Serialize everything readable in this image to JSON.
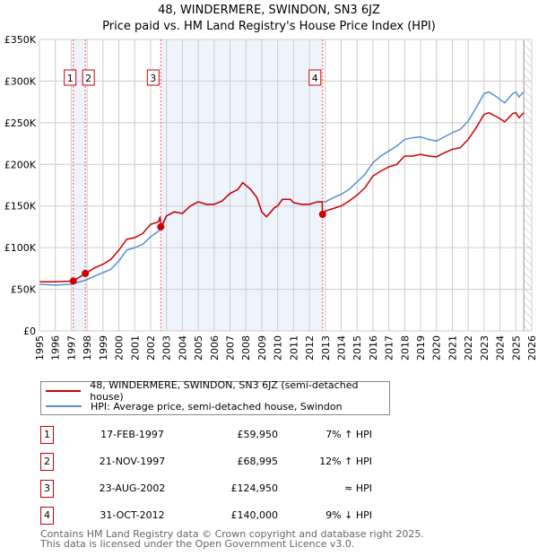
{
  "chart_data": {
    "type": "line",
    "title": "48, WINDERMERE, SWINDON, SN3 6JZ",
    "subtitle": "Price paid vs. HM Land Registry's House Price Index (HPI)",
    "ylim": [
      0,
      350000
    ],
    "xlim": [
      1995,
      2026
    ],
    "yticks": [
      {
        "v": 0,
        "label": "£0"
      },
      {
        "v": 50000,
        "label": "£50K"
      },
      {
        "v": 100000,
        "label": "£100K"
      },
      {
        "v": 150000,
        "label": "£150K"
      },
      {
        "v": 200000,
        "label": "£200K"
      },
      {
        "v": 250000,
        "label": "£250K"
      },
      {
        "v": 300000,
        "label": "£300K"
      },
      {
        "v": 350000,
        "label": "£350K"
      }
    ],
    "xticks": [
      "1995",
      "1996",
      "1997",
      "1998",
      "1999",
      "2000",
      "2001",
      "2002",
      "2003",
      "2004",
      "2005",
      "2006",
      "2007",
      "2008",
      "2009",
      "2010",
      "2011",
      "2012",
      "2013",
      "2014",
      "2015",
      "2016",
      "2017",
      "2018",
      "2019",
      "2020",
      "2021",
      "2022",
      "2023",
      "2024",
      "2025",
      "2026"
    ],
    "series": [
      {
        "name": "48, WINDERMERE, SWINDON, SN3 6JZ (semi-detached house)",
        "color": "#cc0000",
        "x": [
          1995,
          1996,
          1997.13,
          1997.9,
          1998.5,
          1999,
          1999.5,
          2000,
          2000.5,
          2001,
          2001.5,
          2002,
          2002.5,
          2002.6,
          2002.65,
          2003,
          2003.5,
          2004,
          2004.5,
          2005,
          2005.5,
          2006,
          2006.5,
          2007,
          2007.5,
          2007.8,
          2008.3,
          2008.7,
          2009,
          2009.3,
          2009.8,
          2010,
          2010.3,
          2010.8,
          2011,
          2011.5,
          2012,
          2012.5,
          2012.8,
          2012.83,
          2013,
          2013.5,
          2014,
          2014.5,
          2015,
          2015.5,
          2016,
          2016.5,
          2017,
          2017.5,
          2018,
          2018.5,
          2019,
          2019.5,
          2020,
          2020.5,
          2021,
          2021.5,
          2022,
          2022.5,
          2023,
          2023.3,
          2023.8,
          2024,
          2024.3,
          2024.8,
          2025,
          2025.2,
          2025.5
        ],
        "y": [
          59000,
          59000,
          59950,
          68995,
          76000,
          80000,
          86000,
          97000,
          110000,
          112000,
          117000,
          128000,
          131000,
          137000,
          124950,
          138000,
          143000,
          141000,
          150000,
          155000,
          152000,
          152000,
          156000,
          165000,
          170000,
          178000,
          170000,
          160000,
          143000,
          137000,
          148000,
          150000,
          158000,
          158000,
          154000,
          152000,
          152000,
          155000,
          155000,
          140000,
          144000,
          147000,
          150000,
          156000,
          163000,
          172000,
          186000,
          192000,
          197000,
          200000,
          210000,
          210000,
          212000,
          210000,
          209000,
          214000,
          218000,
          220000,
          230000,
          244000,
          260000,
          262000,
          257000,
          255000,
          251000,
          261000,
          262000,
          256000,
          262000
        ]
      },
      {
        "name": "HPI: Average price, semi-detached house, Swindon",
        "color": "#5b8fd0",
        "x": [
          1995,
          1996,
          1997,
          1997.9,
          1998.5,
          1999,
          1999.5,
          2000,
          2000.5,
          2001,
          2001.5,
          2002,
          2002.65,
          2003,
          2003.5,
          2004,
          2004.5,
          2005,
          2005.5,
          2006,
          2006.5,
          2007,
          2007.5,
          2007.8,
          2008.3,
          2008.7,
          2009,
          2009.3,
          2009.8,
          2010,
          2010.3,
          2010.8,
          2011,
          2011.5,
          2012,
          2012.5,
          2013,
          2013.5,
          2014,
          2014.5,
          2015,
          2015.5,
          2016,
          2016.5,
          2017,
          2017.5,
          2018,
          2018.5,
          2019,
          2019.5,
          2020,
          2020.5,
          2021,
          2021.5,
          2022,
          2022.5,
          2023,
          2023.3,
          2023.8,
          2024,
          2024.3,
          2024.8,
          2025,
          2025.2,
          2025.5
        ],
        "y": [
          56000,
          55000,
          56000,
          61000,
          66000,
          70000,
          74000,
          84000,
          97000,
          100000,
          104000,
          113000,
          122000,
          138000,
          143000,
          141000,
          150000,
          155000,
          152000,
          152000,
          156000,
          165000,
          170000,
          178000,
          170000,
          160000,
          143000,
          137000,
          148000,
          150000,
          158000,
          158000,
          154000,
          152000,
          152000,
          155000,
          155000,
          160000,
          164000,
          170000,
          179000,
          188000,
          202000,
          210000,
          216000,
          222000,
          230000,
          232000,
          233000,
          230000,
          228000,
          233000,
          238000,
          242000,
          252000,
          268000,
          285000,
          287000,
          281000,
          278000,
          274000,
          285000,
          287000,
          281000,
          287000
        ]
      }
    ],
    "sales": [
      {
        "id": "1",
        "x": 1997.13,
        "y": 59950
      },
      {
        "id": "2",
        "x": 1997.89,
        "y": 68995
      },
      {
        "id": "3",
        "x": 2002.64,
        "y": 124950
      },
      {
        "id": "4",
        "x": 2012.83,
        "y": 140000
      }
    ],
    "shaded_ranges": [
      [
        1997.13,
        1997.89
      ],
      [
        2002.64,
        2012.83
      ]
    ],
    "forecast_hatch_from": 2025.5,
    "grid": true,
    "legend": "bottom"
  },
  "table": [
    {
      "id": "1",
      "date": "17-FEB-1997",
      "price": "£59,950",
      "hpi": "7% ↑ HPI"
    },
    {
      "id": "2",
      "date": "21-NOV-1997",
      "price": "£68,995",
      "hpi": "12% ↑ HPI"
    },
    {
      "id": "3",
      "date": "23-AUG-2002",
      "price": "£124,950",
      "hpi": "≈ HPI"
    },
    {
      "id": "4",
      "date": "31-OCT-2012",
      "price": "£140,000",
      "hpi": "9% ↓ HPI"
    }
  ],
  "footer": {
    "line1": "Contains HM Land Registry data © Crown copyright and database right 2025.",
    "line2": "This data is licensed under the Open Government Licence v3.0."
  }
}
